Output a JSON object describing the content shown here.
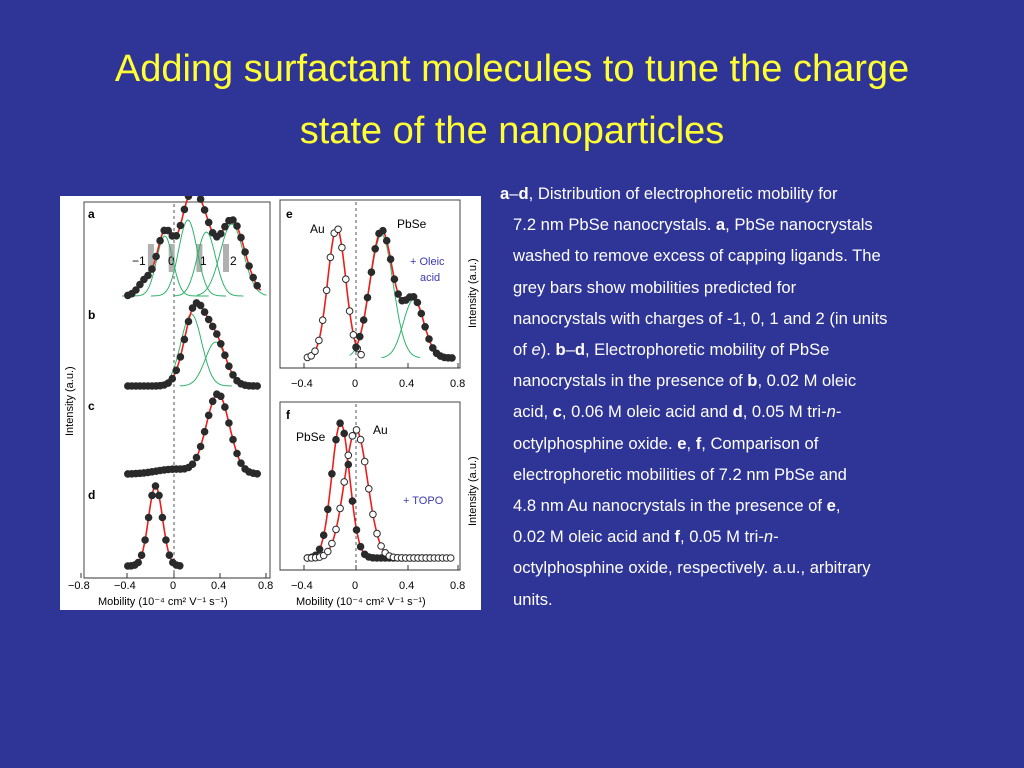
{
  "slide": {
    "title_line1": "Adding surfactant molecules to tune the charge",
    "title_line2": "state of the nanoparticles"
  },
  "figure": {
    "panel_labels": [
      "a",
      "b",
      "c",
      "d",
      "e",
      "f"
    ],
    "left_ylabel": "Intensity (a.u.)",
    "right_ylabel_top": "Intensity (a.u.)",
    "right_ylabel_bottom": "Intensity (a.u.)",
    "left_xticks": [
      "−0.8",
      "−0.4",
      "0",
      "0.4",
      "0.8"
    ],
    "right_xticks_top": [
      "−0.4",
      "0",
      "0.4",
      "0.8"
    ],
    "right_xticks_bottom": [
      "−0.4",
      "0",
      "0.4",
      "0.8"
    ],
    "left_xlabel": "Mobility (10⁻⁴ cm² V⁻¹ s⁻¹)",
    "right_xlabel": "Mobility (10⁻⁴ cm² V⁻¹ s⁻¹)",
    "charge_labels": [
      "−1",
      "0",
      "1",
      "2"
    ],
    "e_au_label": "Au",
    "e_pbse_label": "PbSe",
    "e_oleic_line1": "+ Oleic",
    "e_oleic_line2": "acid",
    "f_pbse_label": "PbSe",
    "f_au_label": "Au",
    "f_topo_label": "+ TOPO",
    "colors": {
      "fit": "#e8201c",
      "gaussian": "#2fb36b",
      "points": "#2a2a2a",
      "label_blue": "#3a3ab0",
      "gray_bar": "#b0b0b0"
    }
  },
  "caption": {
    "line1": {
      "b1": "a",
      "t1": "–",
      "b2": "d",
      "t2": ", Distribution of electrophoretic mobility for"
    },
    "line2": {
      "t1": "7.2 nm PbSe nanocrystals. ",
      "b1": "a",
      "t2": ", PbSe nanocrystals"
    },
    "line3": "washed to remove excess of capping ligands. The",
    "line4": "grey bars show mobilities predicted for",
    "line5": "nanocrystals with charges of -1, 0, 1 and 2 (in units",
    "line6": {
      "t1": "of ",
      "i1": "e",
      "t2": "). ",
      "b1": "b",
      "t3": "–",
      "b2": "d",
      "t4": ", Electrophoretic mobility of PbSe"
    },
    "line7": {
      "t1": "nanocrystals in the presence of ",
      "b1": "b",
      "t2": ", 0.02 M oleic"
    },
    "line8": {
      "t1": "acid, ",
      "b1": "c",
      "t2": ", 0.06 M oleic acid and ",
      "b2": "d",
      "t3": ", 0.05 M tri-",
      "i1": "n",
      "t4": "-"
    },
    "line9": {
      "t1": "octylphosphine oxide. ",
      "b1": "e",
      "t2": ", ",
      "b2": "f",
      "t3": ", Comparison of"
    },
    "line10": "electrophoretic mobilities of 7.2 nm PbSe and",
    "line11": {
      "t1": "4.8 nm Au nanocrystals in the presence of ",
      "b1": "e",
      "t2": ","
    },
    "line12": {
      "t1": "0.02 M oleic acid and ",
      "b1": "f",
      "t2": ", 0.05 M tri-",
      "i1": "n",
      "t3": "-"
    },
    "line13": "octylphosphine oxide, respectively. a.u., arbitrary",
    "line14": "units."
  }
}
